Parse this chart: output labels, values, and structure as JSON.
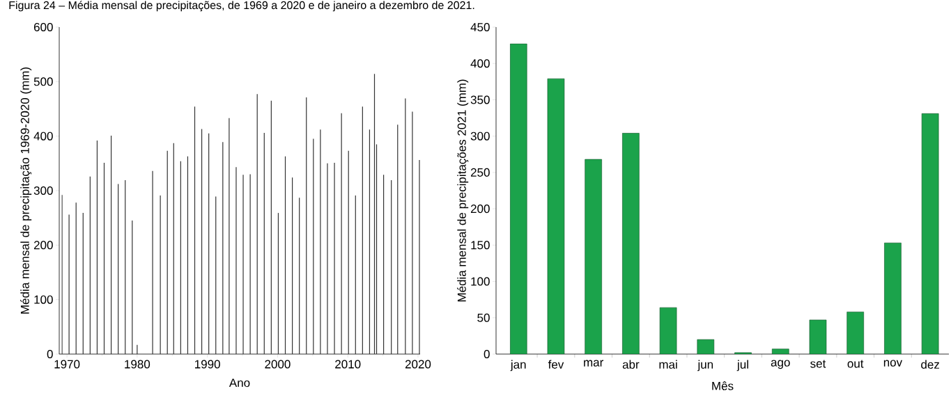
{
  "chart_data": [
    {
      "type": "bar",
      "title": "Figura 24 – Média mensal de precipitações, de 1969 a 2020 e de janeiro a dezembro de 2021.",
      "xlabel": "Ano",
      "ylabel": "Média mensal de precipitação 1969-2020 (mm)",
      "color": "#333333",
      "x": [
        1969.3,
        1970.3,
        1971.3,
        1972.3,
        1973.3,
        1974.3,
        1975.3,
        1976.3,
        1977.3,
        1978.3,
        1979.3,
        1980.0,
        1982.2,
        1983.3,
        1984.3,
        1985.2,
        1986.2,
        1987.2,
        1988.2,
        1989.2,
        1990.2,
        1991.2,
        1992.2,
        1993.1,
        1994.1,
        1995.1,
        1996.1,
        1997.1,
        1998.1,
        1999.1,
        2000.1,
        2001.1,
        2002.1,
        2003.1,
        2004.1,
        2005.1,
        2006.1,
        2007.1,
        2008.1,
        2009.1,
        2010.1,
        2011.1,
        2012.1,
        2013.1,
        2013.8,
        2014.1,
        2015.1,
        2016.2,
        2017.1,
        2018.2,
        2019.2,
        2020.2
      ],
      "values": [
        292,
        256,
        278,
        259,
        326,
        392,
        351,
        401,
        312,
        319,
        245,
        17,
        336,
        291,
        373,
        387,
        354,
        363,
        454,
        413,
        405,
        289,
        389,
        433,
        343,
        329,
        330,
        477,
        406,
        465,
        259,
        363,
        324,
        287,
        471,
        395,
        412,
        350,
        351,
        442,
        373,
        291,
        454,
        412,
        514,
        385,
        329,
        319,
        421,
        469,
        445,
        356
      ],
      "xlim": [
        1968.9,
        2020.3
      ],
      "ylim": [
        0,
        600
      ],
      "xticks": [
        1970,
        1980,
        1990,
        2000,
        2010,
        2020
      ],
      "yticks": [
        0,
        100,
        200,
        300,
        400,
        500,
        600
      ]
    },
    {
      "type": "bar",
      "xlabel": "Mês",
      "ylabel": "Média mensal de precipitações 2021 (mm)",
      "color": "#1ba34b",
      "categories": [
        "jan",
        "fev",
        "mar",
        "abr",
        "mai",
        "jun",
        "jul",
        "ago",
        "set",
        "out",
        "nov",
        "dez"
      ],
      "values": [
        427,
        379,
        268,
        304,
        64,
        20,
        2,
        7,
        47,
        58,
        153,
        331
      ],
      "ylim": [
        0,
        450
      ],
      "yticks": [
        0,
        50,
        100,
        150,
        200,
        250,
        300,
        350,
        400,
        450
      ]
    }
  ]
}
